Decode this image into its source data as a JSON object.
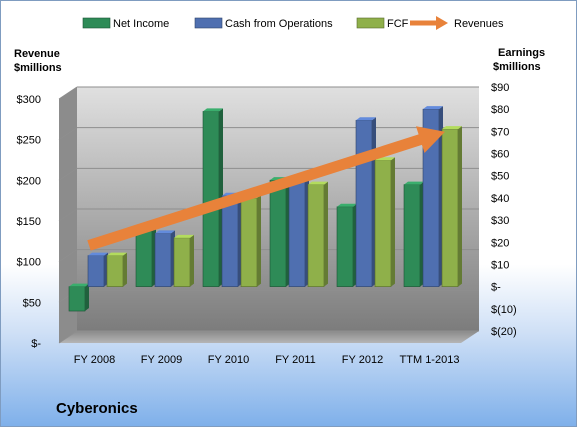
{
  "chart_data": {
    "type": "bar",
    "title": "Cyberonics",
    "categories": [
      "FY 2008",
      "FY 2009",
      "FY 2010",
      "FY 2011",
      "FY 2012",
      "TTM 1-2013"
    ],
    "series": [
      {
        "name": "Net Income",
        "axis": "right",
        "color": "#2e8b57",
        "values": [
          -11,
          25,
          79,
          48,
          36,
          46
        ]
      },
      {
        "name": "Cash from Operations",
        "axis": "right",
        "color": "#4f6fb0",
        "values": [
          14,
          24,
          41,
          48,
          75,
          80
        ]
      },
      {
        "name": "FCF",
        "axis": "right",
        "color": "#8fb04a",
        "values": [
          14,
          22,
          40,
          46,
          57,
          71
        ]
      },
      {
        "name": "Revenues",
        "axis": "left",
        "color": "#e8823a",
        "type": "arrow",
        "values": [
          120,
          0,
          0,
          0,
          0,
          245
        ]
      }
    ],
    "left_axis": {
      "label_line1": "Revenue",
      "label_line2": "$millions",
      "min": 0,
      "max": 300,
      "step": 50,
      "ticks": [
        "$-",
        "$50",
        "$100",
        "$150",
        "$200",
        "$250",
        "$300"
      ]
    },
    "right_axis": {
      "label_line1": "Earnings",
      "label_line2": "$millions",
      "min": -20,
      "max": 90,
      "step": 10,
      "ticks": [
        "$(20)",
        "$(10)",
        "$-",
        "$10",
        "$20",
        "$30",
        "$40",
        "$50",
        "$60",
        "$70",
        "$80",
        "$90"
      ]
    },
    "legend_position": "top",
    "grid": true
  }
}
